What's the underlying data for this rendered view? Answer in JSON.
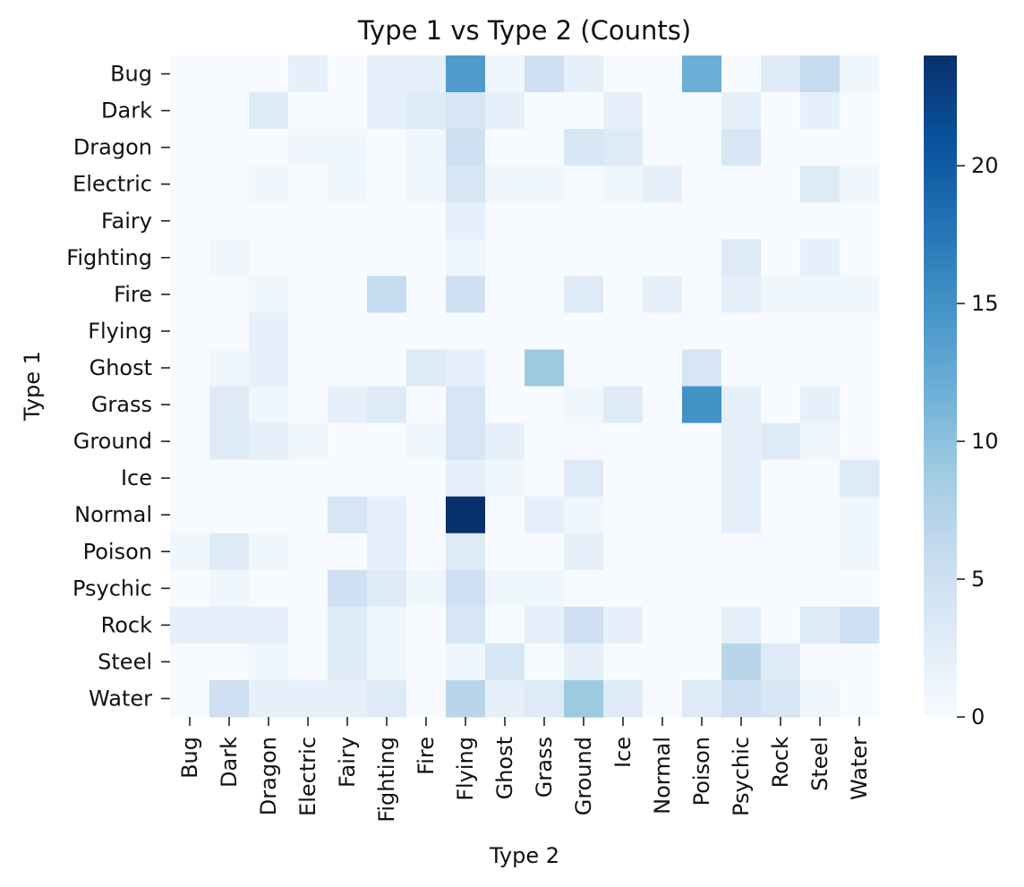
{
  "chart_data": {
    "type": "heatmap",
    "title": "Type 1 vs Type 2 (Counts)",
    "xlabel": "Type 2",
    "ylabel": "Type 1",
    "x_categories": [
      "Bug",
      "Dark",
      "Dragon",
      "Electric",
      "Fairy",
      "Fighting",
      "Fire",
      "Flying",
      "Ghost",
      "Grass",
      "Ground",
      "Ice",
      "Normal",
      "Poison",
      "Psychic",
      "Rock",
      "Steel",
      "Water"
    ],
    "y_categories": [
      "Bug",
      "Dark",
      "Dragon",
      "Electric",
      "Fairy",
      "Fighting",
      "Fire",
      "Flying",
      "Ghost",
      "Grass",
      "Ground",
      "Ice",
      "Normal",
      "Poison",
      "Psychic",
      "Rock",
      "Steel",
      "Water"
    ],
    "values": [
      [
        0,
        0,
        0,
        2,
        0,
        2,
        2,
        14,
        1,
        5,
        2,
        0,
        0,
        12,
        0,
        3,
        6,
        1
      ],
      [
        0,
        0,
        3,
        0,
        0,
        2,
        3,
        4,
        2,
        0,
        0,
        2,
        0,
        0,
        2,
        0,
        2,
        0
      ],
      [
        0,
        0,
        0,
        1,
        1,
        0,
        1,
        5,
        0,
        0,
        4,
        3,
        0,
        0,
        4,
        0,
        0,
        0
      ],
      [
        0,
        0,
        1,
        0,
        1,
        0,
        1,
        4,
        1,
        1,
        0,
        1,
        2,
        0,
        0,
        0,
        3,
        1
      ],
      [
        0,
        0,
        0,
        0,
        0,
        0,
        0,
        2,
        0,
        0,
        0,
        0,
        0,
        0,
        0,
        0,
        0,
        0
      ],
      [
        0,
        1,
        0,
        0,
        0,
        0,
        0,
        1,
        0,
        0,
        0,
        0,
        0,
        0,
        3,
        0,
        2,
        0
      ],
      [
        0,
        0,
        1,
        0,
        0,
        6,
        0,
        5,
        0,
        0,
        3,
        0,
        2,
        0,
        2,
        1,
        1,
        1
      ],
      [
        0,
        0,
        2,
        0,
        0,
        0,
        0,
        0,
        0,
        0,
        0,
        0,
        0,
        0,
        0,
        0,
        0,
        0
      ],
      [
        0,
        1,
        2,
        0,
        0,
        0,
        3,
        2,
        0,
        9,
        0,
        0,
        0,
        4,
        0,
        0,
        0,
        0
      ],
      [
        0,
        3,
        1,
        0,
        2,
        3,
        0,
        4,
        0,
        0,
        1,
        3,
        0,
        15,
        2,
        0,
        2,
        0
      ],
      [
        0,
        3,
        2,
        1,
        0,
        0,
        1,
        4,
        2,
        0,
        0,
        0,
        0,
        0,
        2,
        3,
        1,
        0
      ],
      [
        0,
        0,
        0,
        0,
        0,
        0,
        0,
        2,
        1,
        0,
        3,
        0,
        0,
        0,
        2,
        0,
        0,
        3
      ],
      [
        0,
        0,
        0,
        0,
        4,
        2,
        0,
        24,
        0,
        2,
        1,
        0,
        0,
        0,
        2,
        0,
        0,
        1
      ],
      [
        1,
        3,
        1,
        0,
        0,
        2,
        0,
        3,
        0,
        0,
        2,
        0,
        0,
        0,
        0,
        0,
        0,
        1
      ],
      [
        0,
        1,
        0,
        0,
        5,
        3,
        1,
        5,
        1,
        1,
        0,
        0,
        0,
        0,
        0,
        0,
        0,
        0
      ],
      [
        2,
        2,
        2,
        0,
        3,
        1,
        0,
        4,
        0,
        2,
        5,
        2,
        0,
        0,
        2,
        0,
        3,
        5
      ],
      [
        0,
        0,
        1,
        0,
        3,
        1,
        0,
        1,
        4,
        0,
        2,
        0,
        0,
        0,
        7,
        3,
        0,
        0
      ],
      [
        0,
        5,
        2,
        2,
        2,
        3,
        0,
        7,
        2,
        3,
        9,
        3,
        0,
        3,
        5,
        4,
        1,
        0
      ]
    ],
    "colorbar": {
      "min": 0,
      "max": 24,
      "ticks": [
        0,
        5,
        10,
        15,
        20
      ]
    },
    "colormap": "Blues",
    "colors": {
      "low": "#f7fbff",
      "high": "#08306b"
    }
  }
}
